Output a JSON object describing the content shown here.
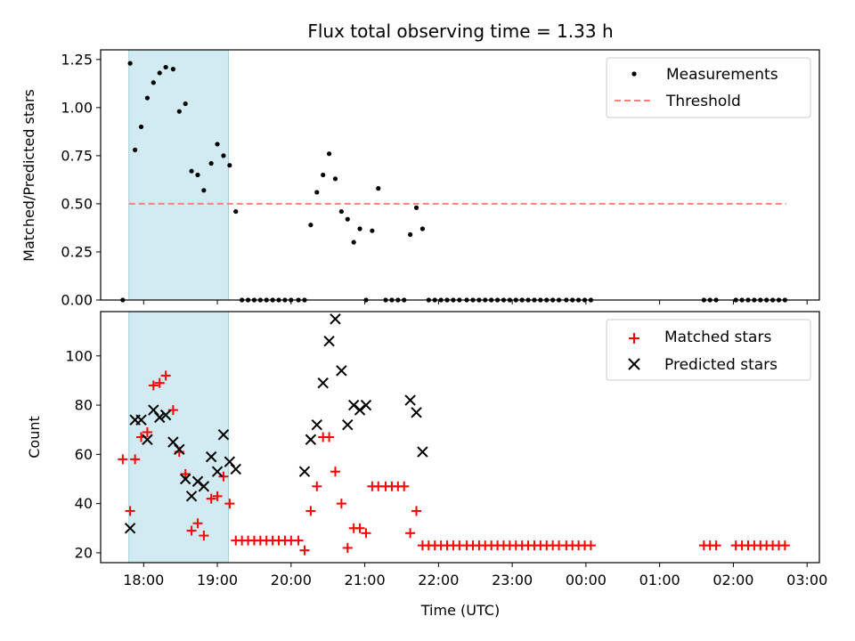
{
  "chart_data": [
    {
      "type": "scatter",
      "title": "Flux total observing time = 1.33 h",
      "xlabel": "",
      "ylabel": "Matched/Predicted stars",
      "ylim": [
        0,
        1.3
      ],
      "yticks": [
        "0.00",
        "0.25",
        "0.50",
        "0.75",
        "1.00",
        "1.25"
      ],
      "xlim": [
        "17:25",
        "03:10"
      ],
      "shaded_span": [
        "17:48",
        "19:09"
      ],
      "shaded_color": "#add8e6",
      "threshold": {
        "name": "Threshold",
        "value": 0.5,
        "x_range": [
          "17:48",
          "02:43"
        ],
        "color": "#ff7f7f",
        "style": "dashed"
      },
      "legend": {
        "position": "top-right",
        "entries": [
          "Measurements",
          "Threshold"
        ]
      },
      "series": [
        {
          "name": "Measurements",
          "color": "#000000",
          "points": [
            [
              "17:43",
              0.0
            ],
            [
              "17:49",
              1.23
            ],
            [
              "17:53",
              0.78
            ],
            [
              "17:58",
              0.9
            ],
            [
              "18:03",
              1.05
            ],
            [
              "18:08",
              1.13
            ],
            [
              "18:13",
              1.18
            ],
            [
              "18:18",
              1.21
            ],
            [
              "18:24",
              1.2
            ],
            [
              "18:29",
              0.98
            ],
            [
              "18:34",
              1.02
            ],
            [
              "18:39",
              0.67
            ],
            [
              "18:44",
              0.65
            ],
            [
              "18:49",
              0.57
            ],
            [
              "18:55",
              0.71
            ],
            [
              "19:00",
              0.81
            ],
            [
              "19:05",
              0.75
            ],
            [
              "19:10",
              0.7
            ],
            [
              "19:15",
              0.46
            ],
            [
              "19:20",
              0.0
            ],
            [
              "19:25",
              0.0
            ],
            [
              "19:30",
              0.0
            ],
            [
              "19:35",
              0.0
            ],
            [
              "19:40",
              0.0
            ],
            [
              "19:45",
              0.0
            ],
            [
              "19:50",
              0.0
            ],
            [
              "19:55",
              0.0
            ],
            [
              "20:00",
              0.0
            ],
            [
              "20:06",
              0.0
            ],
            [
              "20:11",
              0.0
            ],
            [
              "20:16",
              0.39
            ],
            [
              "20:21",
              0.56
            ],
            [
              "20:26",
              0.65
            ],
            [
              "20:31",
              0.76
            ],
            [
              "20:36",
              0.63
            ],
            [
              "20:41",
              0.46
            ],
            [
              "20:46",
              0.42
            ],
            [
              "20:51",
              0.3
            ],
            [
              "20:56",
              0.37
            ],
            [
              "21:01",
              0.0
            ],
            [
              "21:06",
              0.36
            ],
            [
              "21:11",
              0.58
            ],
            [
              "21:17",
              0.0
            ],
            [
              "21:22",
              0.0
            ],
            [
              "21:27",
              0.0
            ],
            [
              "21:32",
              0.0
            ],
            [
              "21:37",
              0.34
            ],
            [
              "21:42",
              0.48
            ],
            [
              "21:47",
              0.37
            ],
            [
              "21:52",
              0.0
            ],
            [
              "21:57",
              0.0
            ],
            [
              "22:02",
              0.0
            ],
            [
              "22:07",
              0.0
            ],
            [
              "22:12",
              0.0
            ],
            [
              "22:17",
              0.0
            ],
            [
              "22:23",
              0.0
            ],
            [
              "22:28",
              0.0
            ],
            [
              "22:33",
              0.0
            ],
            [
              "22:38",
              0.0
            ],
            [
              "22:43",
              0.0
            ],
            [
              "22:48",
              0.0
            ],
            [
              "22:53",
              0.0
            ],
            [
              "22:58",
              0.0
            ],
            [
              "23:03",
              0.0
            ],
            [
              "23:08",
              0.0
            ],
            [
              "23:13",
              0.0
            ],
            [
              "23:18",
              0.0
            ],
            [
              "23:23",
              0.0
            ],
            [
              "23:28",
              0.0
            ],
            [
              "23:33",
              0.0
            ],
            [
              "23:38",
              0.0
            ],
            [
              "23:44",
              0.0
            ],
            [
              "23:49",
              0.0
            ],
            [
              "23:54",
              0.0
            ],
            [
              "23:59",
              0.0
            ],
            [
              "00:04",
              0.0
            ],
            [
              "01:36",
              0.0
            ],
            [
              "01:41",
              0.0
            ],
            [
              "01:46",
              0.0
            ],
            [
              "02:02",
              0.0
            ],
            [
              "02:07",
              0.0
            ],
            [
              "02:12",
              0.0
            ],
            [
              "02:17",
              0.0
            ],
            [
              "02:22",
              0.0
            ],
            [
              "02:27",
              0.0
            ],
            [
              "02:32",
              0.0
            ],
            [
              "02:37",
              0.0
            ],
            [
              "02:42",
              0.0
            ]
          ]
        }
      ]
    },
    {
      "type": "scatter",
      "title": "",
      "xlabel": "Time (UTC)",
      "ylabel": "Count",
      "ylim": [
        16,
        118
      ],
      "yticks": [
        "20",
        "40",
        "60",
        "80",
        "100"
      ],
      "xlim": [
        "17:25",
        "03:10"
      ],
      "xticks": [
        "18:00",
        "19:00",
        "20:00",
        "21:00",
        "22:00",
        "23:00",
        "00:00",
        "01:00",
        "02:00",
        "03:00"
      ],
      "shaded_span": [
        "17:48",
        "19:09"
      ],
      "shaded_color": "#add8e6",
      "legend": {
        "position": "top-right",
        "entries": [
          "Matched stars",
          "Predicted stars"
        ]
      },
      "series": [
        {
          "name": "Matched stars",
          "marker": "+",
          "color": "#ff0000",
          "points": [
            [
              "17:43",
              58
            ],
            [
              "17:49",
              37
            ],
            [
              "17:53",
              58
            ],
            [
              "17:58",
              67
            ],
            [
              "18:03",
              69
            ],
            [
              "18:08",
              88
            ],
            [
              "18:13",
              89
            ],
            [
              "18:18",
              92
            ],
            [
              "18:24",
              78
            ],
            [
              "18:29",
              61
            ],
            [
              "18:34",
              52
            ],
            [
              "18:39",
              29
            ],
            [
              "18:44",
              32
            ],
            [
              "18:49",
              27
            ],
            [
              "18:55",
              42
            ],
            [
              "19:00",
              43
            ],
            [
              "19:05",
              51
            ],
            [
              "19:10",
              40
            ],
            [
              "19:15",
              25
            ],
            [
              "19:20",
              25
            ],
            [
              "19:25",
              25
            ],
            [
              "19:30",
              25
            ],
            [
              "19:35",
              25
            ],
            [
              "19:40",
              25
            ],
            [
              "19:45",
              25
            ],
            [
              "19:50",
              25
            ],
            [
              "19:55",
              25
            ],
            [
              "20:00",
              25
            ],
            [
              "20:06",
              25
            ],
            [
              "20:11",
              21
            ],
            [
              "20:16",
              37
            ],
            [
              "20:21",
              47
            ],
            [
              "20:26",
              67
            ],
            [
              "20:31",
              67
            ],
            [
              "20:36",
              53
            ],
            [
              "20:41",
              40
            ],
            [
              "20:46",
              22
            ],
            [
              "20:51",
              30
            ],
            [
              "20:56",
              30
            ],
            [
              "21:01",
              28
            ],
            [
              "21:06",
              47
            ],
            [
              "21:11",
              47
            ],
            [
              "21:17",
              47
            ],
            [
              "21:22",
              47
            ],
            [
              "21:27",
              47
            ],
            [
              "21:32",
              47
            ],
            [
              "21:37",
              28
            ],
            [
              "21:42",
              37
            ],
            [
              "21:47",
              23
            ],
            [
              "21:52",
              23
            ],
            [
              "21:57",
              23
            ],
            [
              "22:02",
              23
            ],
            [
              "22:07",
              23
            ],
            [
              "22:12",
              23
            ],
            [
              "22:17",
              23
            ],
            [
              "22:23",
              23
            ],
            [
              "22:28",
              23
            ],
            [
              "22:33",
              23
            ],
            [
              "22:38",
              23
            ],
            [
              "22:43",
              23
            ],
            [
              "22:48",
              23
            ],
            [
              "22:53",
              23
            ],
            [
              "22:58",
              23
            ],
            [
              "23:03",
              23
            ],
            [
              "23:08",
              23
            ],
            [
              "23:13",
              23
            ],
            [
              "23:18",
              23
            ],
            [
              "23:23",
              23
            ],
            [
              "23:28",
              23
            ],
            [
              "23:33",
              23
            ],
            [
              "23:38",
              23
            ],
            [
              "23:44",
              23
            ],
            [
              "23:49",
              23
            ],
            [
              "23:54",
              23
            ],
            [
              "23:59",
              23
            ],
            [
              "00:04",
              23
            ],
            [
              "01:36",
              23
            ],
            [
              "01:41",
              23
            ],
            [
              "01:46",
              23
            ],
            [
              "02:02",
              23
            ],
            [
              "02:07",
              23
            ],
            [
              "02:12",
              23
            ],
            [
              "02:17",
              23
            ],
            [
              "02:22",
              23
            ],
            [
              "02:27",
              23
            ],
            [
              "02:32",
              23
            ],
            [
              "02:37",
              23
            ],
            [
              "02:42",
              23
            ]
          ]
        },
        {
          "name": "Predicted stars",
          "marker": "x",
          "color": "#000000",
          "points": [
            [
              "17:49",
              30
            ],
            [
              "17:53",
              74
            ],
            [
              "17:58",
              74
            ],
            [
              "18:03",
              66
            ],
            [
              "18:08",
              78
            ],
            [
              "18:13",
              75
            ],
            [
              "18:18",
              76
            ],
            [
              "18:24",
              65
            ],
            [
              "18:29",
              62
            ],
            [
              "18:34",
              50
            ],
            [
              "18:39",
              43
            ],
            [
              "18:44",
              49
            ],
            [
              "18:49",
              47
            ],
            [
              "18:55",
              59
            ],
            [
              "19:00",
              53
            ],
            [
              "19:05",
              68
            ],
            [
              "19:10",
              57
            ],
            [
              "19:15",
              54
            ],
            [
              "20:11",
              53
            ],
            [
              "20:16",
              66
            ],
            [
              "20:21",
              72
            ],
            [
              "20:26",
              89
            ],
            [
              "20:31",
              106
            ],
            [
              "20:36",
              115
            ],
            [
              "20:41",
              94
            ],
            [
              "20:46",
              72
            ],
            [
              "20:51",
              80
            ],
            [
              "20:56",
              78
            ],
            [
              "21:01",
              80
            ],
            [
              "21:37",
              82
            ],
            [
              "21:42",
              77
            ],
            [
              "21:47",
              61
            ]
          ]
        }
      ]
    }
  ]
}
